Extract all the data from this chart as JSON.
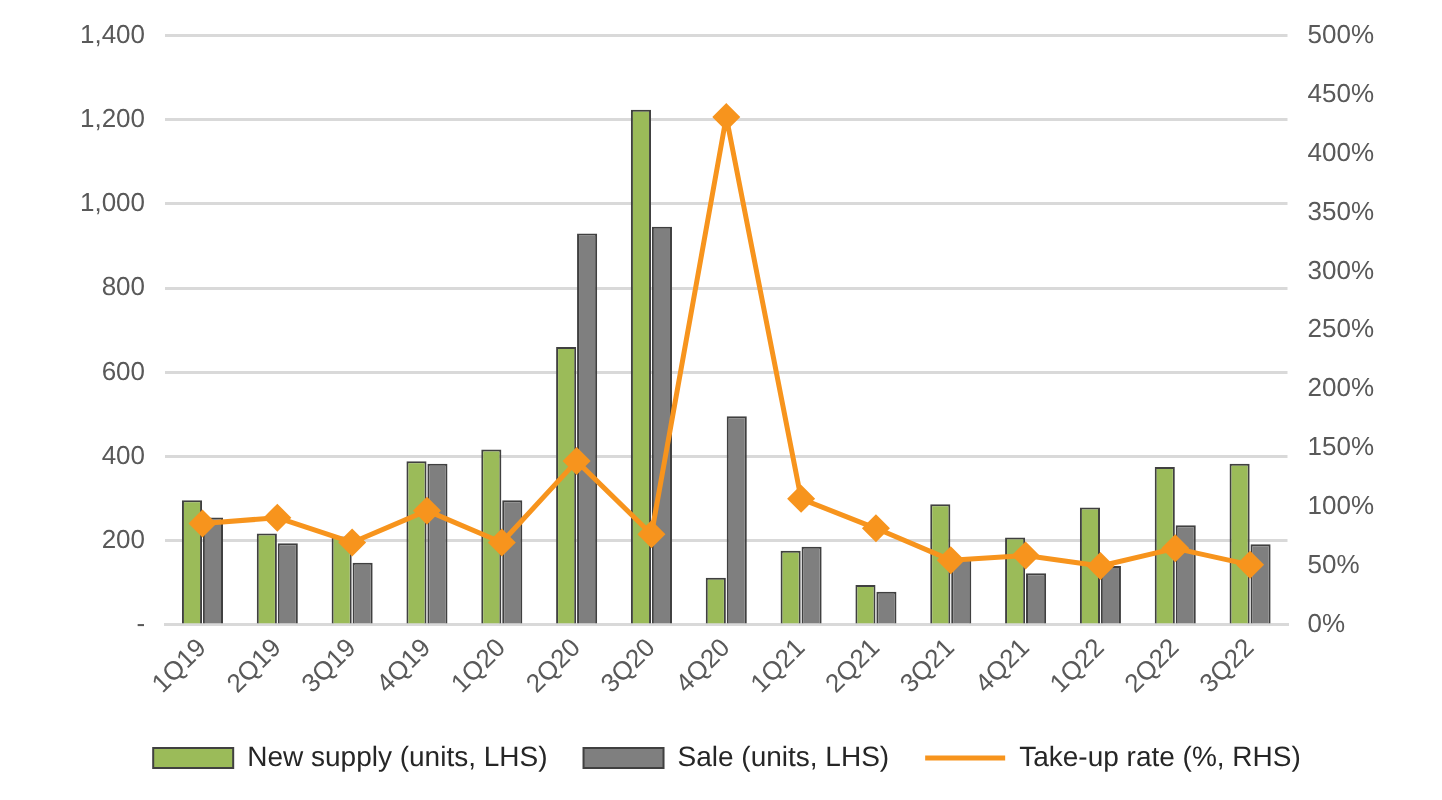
{
  "chart_data": {
    "type": "bar",
    "categories": [
      "1Q19",
      "2Q19",
      "3Q19",
      "4Q19",
      "1Q20",
      "2Q20",
      "3Q20",
      "4Q20",
      "1Q21",
      "2Q21",
      "3Q21",
      "4Q21",
      "1Q22",
      "2Q22",
      "3Q22"
    ],
    "series": [
      {
        "name": "New supply (units, LHS)",
        "color": "#9bbb59",
        "values": [
          296,
          217,
          210,
          389,
          417,
          660,
          1224,
          112,
          176,
          95,
          287,
          208,
          279,
          375,
          383
        ]
      },
      {
        "name": "Sale (units, LHS)",
        "color": "#7f7f7f",
        "values": [
          255,
          194,
          148,
          383,
          296,
          930,
          946,
          496,
          186,
          79,
          158,
          123,
          140,
          237,
          192
        ]
      },
      {
        "name": "Take-up rate (%, RHS)",
        "type": "line",
        "axis": "y2",
        "color": "#f7941d",
        "values": [
          86,
          91,
          70,
          97,
          70,
          139,
          77,
          431,
          107,
          82,
          55,
          59,
          50,
          65,
          51
        ]
      }
    ],
    "ylim": [
      0,
      1400
    ],
    "yticks": [
      {
        "value": 0,
        "label": "-"
      },
      200,
      400,
      600,
      800,
      {
        "value": 1000,
        "label": "1,000"
      },
      {
        "value": 1200,
        "label": "1,200"
      },
      {
        "value": 1400,
        "label": "1,400"
      }
    ],
    "y2lim": [
      0,
      500
    ],
    "y2ticks": [
      {
        "value": 0,
        "label": "0%"
      },
      {
        "value": 50,
        "label": "50%"
      },
      {
        "value": 100,
        "label": "100%"
      },
      {
        "value": 150,
        "label": "150%"
      },
      {
        "value": 200,
        "label": "200%"
      },
      {
        "value": 250,
        "label": "250%"
      },
      {
        "value": 300,
        "label": "300%"
      },
      {
        "value": 350,
        "label": "350%"
      },
      {
        "value": 400,
        "label": "400%"
      },
      {
        "value": 450,
        "label": "450%"
      },
      {
        "value": 500,
        "label": "500%"
      }
    ],
    "grid": "y",
    "legend": "bottom",
    "marker": "diamond"
  }
}
